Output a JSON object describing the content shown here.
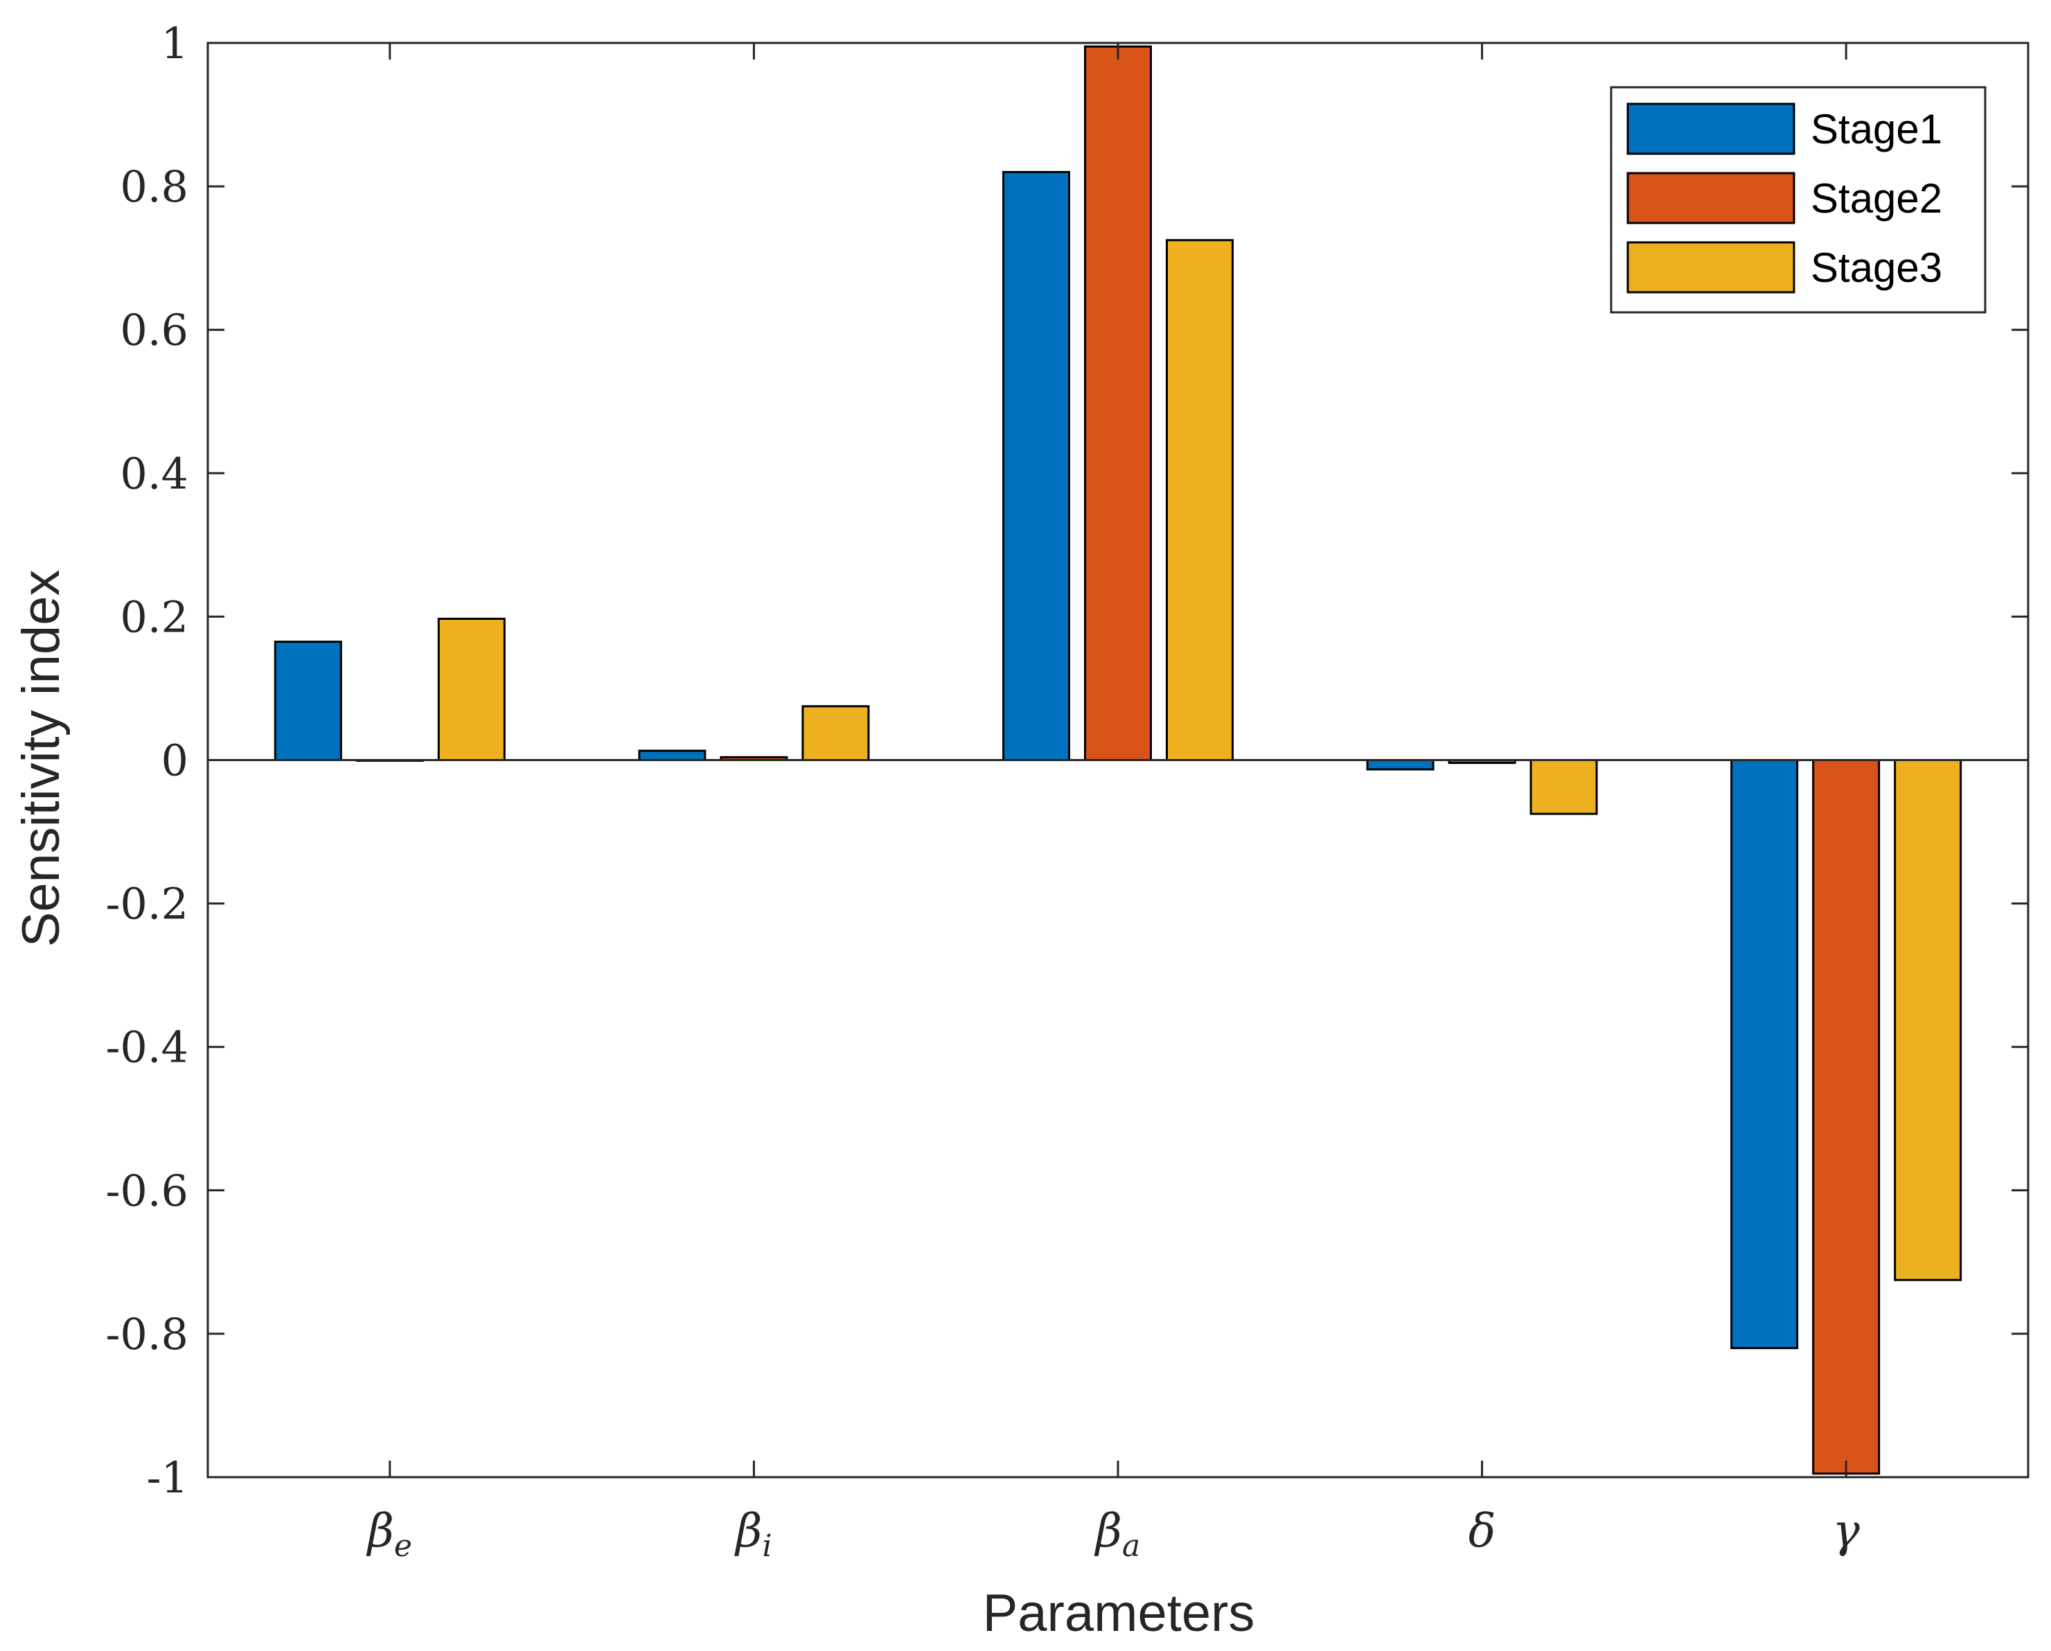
{
  "chart_data": {
    "type": "bar",
    "title": "",
    "xlabel": "Parameters",
    "ylabel": "Sensitivity index",
    "ylim": [
      -1,
      1
    ],
    "yticks": [
      "-1",
      "-0.8",
      "-0.6",
      "-0.4",
      "-0.2",
      "0",
      "0.2",
      "0.4",
      "0.6",
      "0.8",
      "1"
    ],
    "categories": [
      {
        "base": "β",
        "sub": "e"
      },
      {
        "base": "β",
        "sub": "i"
      },
      {
        "base": "β",
        "sub": "a"
      },
      {
        "base": "δ",
        "sub": ""
      },
      {
        "base": "γ",
        "sub": ""
      }
    ],
    "series": [
      {
        "name": "Stage1",
        "color": "#0072BD",
        "values": [
          0.165,
          0.013,
          0.82,
          -0.013,
          -0.82
        ]
      },
      {
        "name": "Stage2",
        "color": "#D95319",
        "values": [
          0.0,
          0.004,
          0.995,
          -0.004,
          -0.995
        ]
      },
      {
        "name": "Stage3",
        "color": "#EDB120",
        "values": [
          0.197,
          0.075,
          0.725,
          -0.075,
          -0.725
        ]
      }
    ],
    "legend_position": "top-right",
    "grid": false
  }
}
